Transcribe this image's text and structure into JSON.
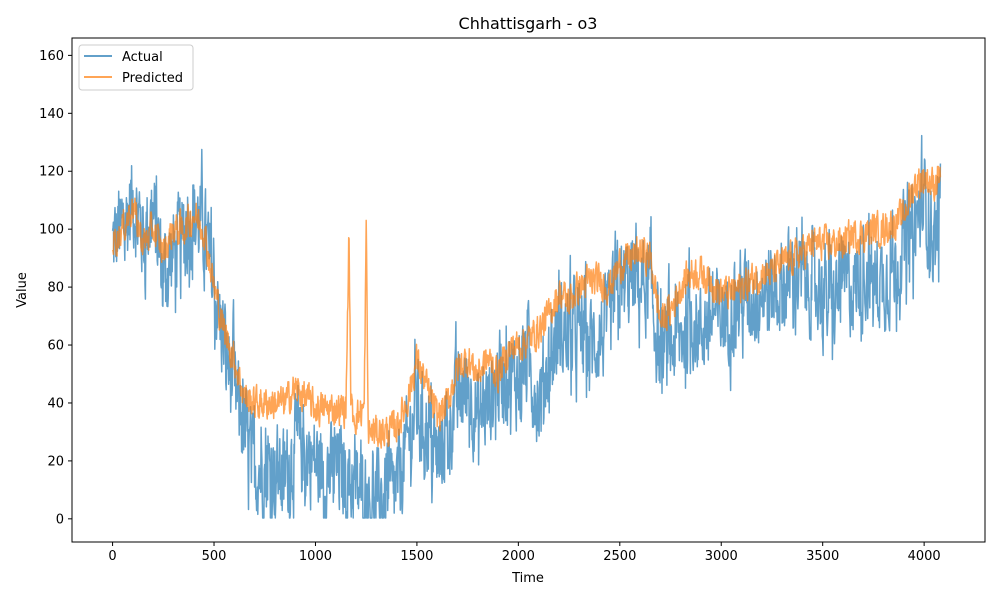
{
  "chart_data": {
    "type": "line",
    "title": "Chhattisgarh - o3",
    "xlabel": "Time",
    "ylabel": "Value",
    "xlim": [
      -200,
      4300
    ],
    "ylim": [
      -8,
      166
    ],
    "xticks": [
      0,
      500,
      1000,
      1500,
      2000,
      2500,
      3000,
      3500,
      4000
    ],
    "yticks": [
      0,
      20,
      40,
      60,
      80,
      100,
      120,
      140,
      160
    ],
    "legend": {
      "position": "top-left"
    },
    "series": [
      {
        "name": "Actual",
        "color": "#1f77b4",
        "opacity": 0.7,
        "noise": 22,
        "x": [
          0,
          50,
          100,
          150,
          200,
          250,
          300,
          350,
          400,
          450,
          500,
          550,
          600,
          650,
          700,
          750,
          800,
          850,
          900,
          950,
          1000,
          1050,
          1100,
          1150,
          1200,
          1250,
          1300,
          1350,
          1400,
          1450,
          1500,
          1550,
          1600,
          1650,
          1700,
          1750,
          1800,
          1850,
          1900,
          1950,
          2000,
          2050,
          2100,
          2150,
          2200,
          2250,
          2300,
          2350,
          2400,
          2450,
          2500,
          2550,
          2600,
          2650,
          2700,
          2750,
          2800,
          2850,
          2900,
          2950,
          3000,
          3050,
          3100,
          3150,
          3200,
          3250,
          3300,
          3350,
          3400,
          3450,
          3500,
          3550,
          3600,
          3650,
          3700,
          3750,
          3800,
          3850,
          3900,
          3950,
          4000,
          4050,
          4080
        ],
        "values": [
          95,
          100,
          110,
          98,
          105,
          85,
          92,
          98,
          105,
          100,
          80,
          60,
          45,
          30,
          18,
          16,
          17,
          15,
          25,
          22,
          20,
          15,
          17,
          14,
          10,
          8,
          6,
          7,
          10,
          25,
          40,
          30,
          20,
          30,
          42,
          45,
          35,
          40,
          48,
          50,
          48,
          55,
          40,
          55,
          65,
          62,
          65,
          60,
          62,
          68,
          80,
          82,
          82,
          78,
          55,
          60,
          62,
          70,
          65,
          70,
          70,
          72,
          78,
          75,
          80,
          78,
          80,
          85,
          82,
          80,
          80,
          72,
          82,
          80,
          85,
          82,
          82,
          85,
          95,
          100,
          110,
          95,
          108
        ]
      },
      {
        "name": "Predicted",
        "color": "#ff7f0e",
        "opacity": 0.7,
        "noise": 8,
        "x": [
          0,
          50,
          100,
          150,
          200,
          250,
          300,
          350,
          400,
          450,
          500,
          550,
          600,
          650,
          700,
          750,
          800,
          850,
          900,
          950,
          1000,
          1050,
          1100,
          1150,
          1165,
          1175,
          1200,
          1240,
          1250,
          1260,
          1300,
          1350,
          1400,
          1450,
          1500,
          1550,
          1600,
          1650,
          1700,
          1750,
          1800,
          1850,
          1900,
          1950,
          2000,
          2050,
          2100,
          2150,
          2200,
          2250,
          2300,
          2350,
          2400,
          2450,
          2500,
          2550,
          2600,
          2650,
          2700,
          2750,
          2800,
          2850,
          2900,
          2950,
          3000,
          3050,
          3100,
          3150,
          3200,
          3250,
          3300,
          3350,
          3400,
          3450,
          3500,
          3550,
          3600,
          3650,
          3700,
          3750,
          3800,
          3850,
          3900,
          3950,
          4000,
          4050,
          4080
        ],
        "values": [
          95,
          100,
          108,
          95,
          100,
          92,
          100,
          100,
          105,
          100,
          80,
          65,
          55,
          42,
          40,
          40,
          40,
          40,
          45,
          42,
          38,
          38,
          38,
          38,
          97,
          38,
          35,
          38,
          101,
          30,
          30,
          30,
          32,
          40,
          55,
          45,
          35,
          40,
          52,
          55,
          50,
          55,
          50,
          58,
          60,
          62,
          65,
          70,
          78,
          75,
          80,
          82,
          82,
          80,
          88,
          90,
          92,
          90,
          68,
          72,
          80,
          85,
          85,
          82,
          78,
          78,
          80,
          82,
          85,
          85,
          88,
          90,
          92,
          95,
          95,
          95,
          95,
          98,
          98,
          100,
          100,
          102,
          105,
          115,
          118,
          115,
          120
        ]
      }
    ]
  }
}
